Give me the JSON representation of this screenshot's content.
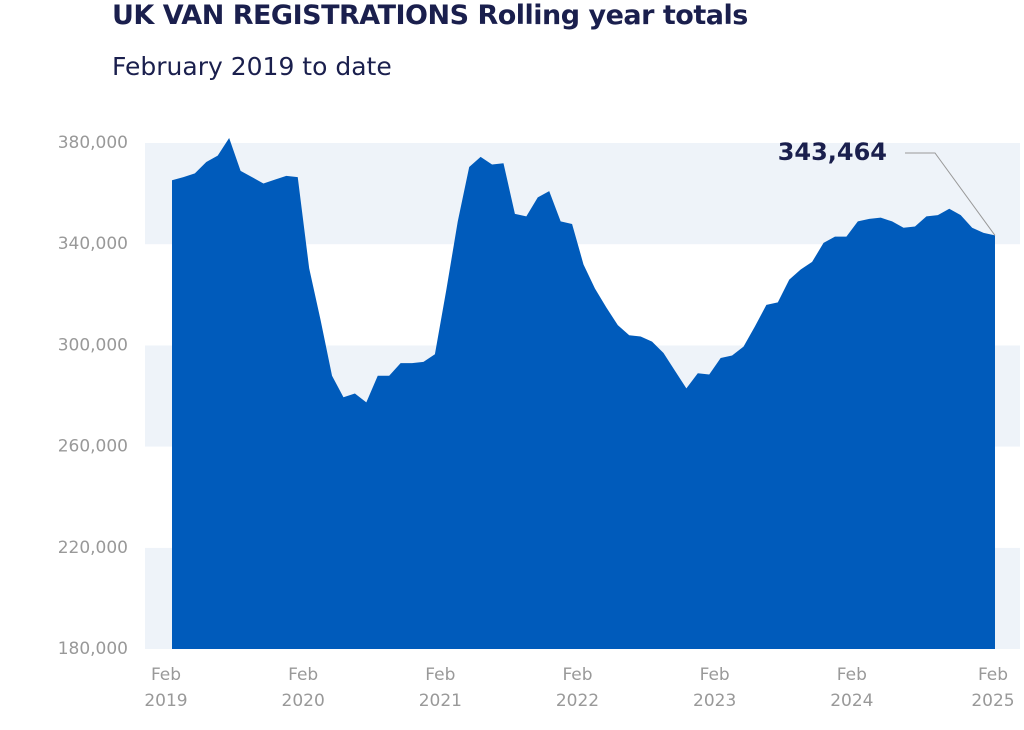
{
  "chart_data": {
    "type": "area",
    "title": "UK VAN REGISTRATIONS Rolling year totals",
    "subtitle": "February 2019 to date",
    "categories": [
      "Feb 2019",
      null,
      null,
      null,
      null,
      null,
      null,
      null,
      null,
      null,
      null,
      null,
      "Feb 2020",
      null,
      null,
      null,
      null,
      null,
      null,
      null,
      null,
      null,
      null,
      null,
      "Feb 2021",
      null,
      null,
      null,
      null,
      null,
      null,
      null,
      null,
      null,
      null,
      null,
      "Feb 2022",
      null,
      null,
      null,
      null,
      null,
      null,
      null,
      null,
      null,
      null,
      null,
      "Feb 2023",
      null,
      null,
      null,
      null,
      null,
      null,
      null,
      null,
      null,
      null,
      null,
      "Feb 2024",
      null,
      null,
      null,
      null,
      null,
      null,
      null,
      null,
      null,
      null,
      null,
      "Feb 2025"
    ],
    "series": [
      {
        "name": "Rolling year total",
        "color": "#005bbb",
        "values": [
          365300,
          366500,
          368000,
          372500,
          375000,
          382000,
          369000,
          366500,
          364000,
          365500,
          367000,
          366500,
          330500,
          310000,
          288000,
          279500,
          281000,
          277500,
          288000,
          288000,
          293000,
          293000,
          293500,
          296500,
          322000,
          349000,
          370500,
          374500,
          371500,
          372000,
          352000,
          351000,
          358500,
          361000,
          349000,
          348000,
          332000,
          322500,
          315000,
          308000,
          304000,
          303500,
          301500,
          297000,
          290000,
          283000,
          289000,
          288500,
          295000,
          296000,
          299500,
          307500,
          316000,
          317000,
          326000,
          330000,
          333000,
          340500,
          343000,
          343000,
          349000,
          350000,
          350500,
          349000,
          346500,
          347000,
          351000,
          351500,
          354000,
          351500,
          346500,
          344500,
          343464
        ],
        "value_labels": [
          null,
          null,
          null,
          null,
          null,
          null,
          null,
          null,
          null,
          null,
          null,
          null,
          null,
          null,
          null,
          null,
          null,
          null,
          null,
          null,
          null,
          null,
          null,
          null,
          null,
          null,
          null,
          null,
          null,
          null,
          null,
          null,
          null,
          null,
          null,
          null,
          null,
          null,
          null,
          null,
          null,
          null,
          null,
          null,
          null,
          null,
          null,
          null,
          null,
          null,
          null,
          null,
          null,
          null,
          null,
          null,
          null,
          null,
          null,
          null,
          null,
          null,
          null,
          null,
          null,
          null,
          null,
          null,
          null,
          null,
          null,
          null,
          "343,464"
        ]
      }
    ],
    "ylim": [
      180000,
      380000
    ],
    "yticks": [
      {
        "value": 180000,
        "label": "180,000"
      },
      {
        "value": 220000,
        "label": "220,000"
      },
      {
        "value": 260000,
        "label": "260,000"
      },
      {
        "value": 300000,
        "label": "300,000"
      },
      {
        "value": 340000,
        "label": "340,000"
      },
      {
        "value": 380000,
        "label": "380,000"
      }
    ],
    "grid": "bands"
  }
}
